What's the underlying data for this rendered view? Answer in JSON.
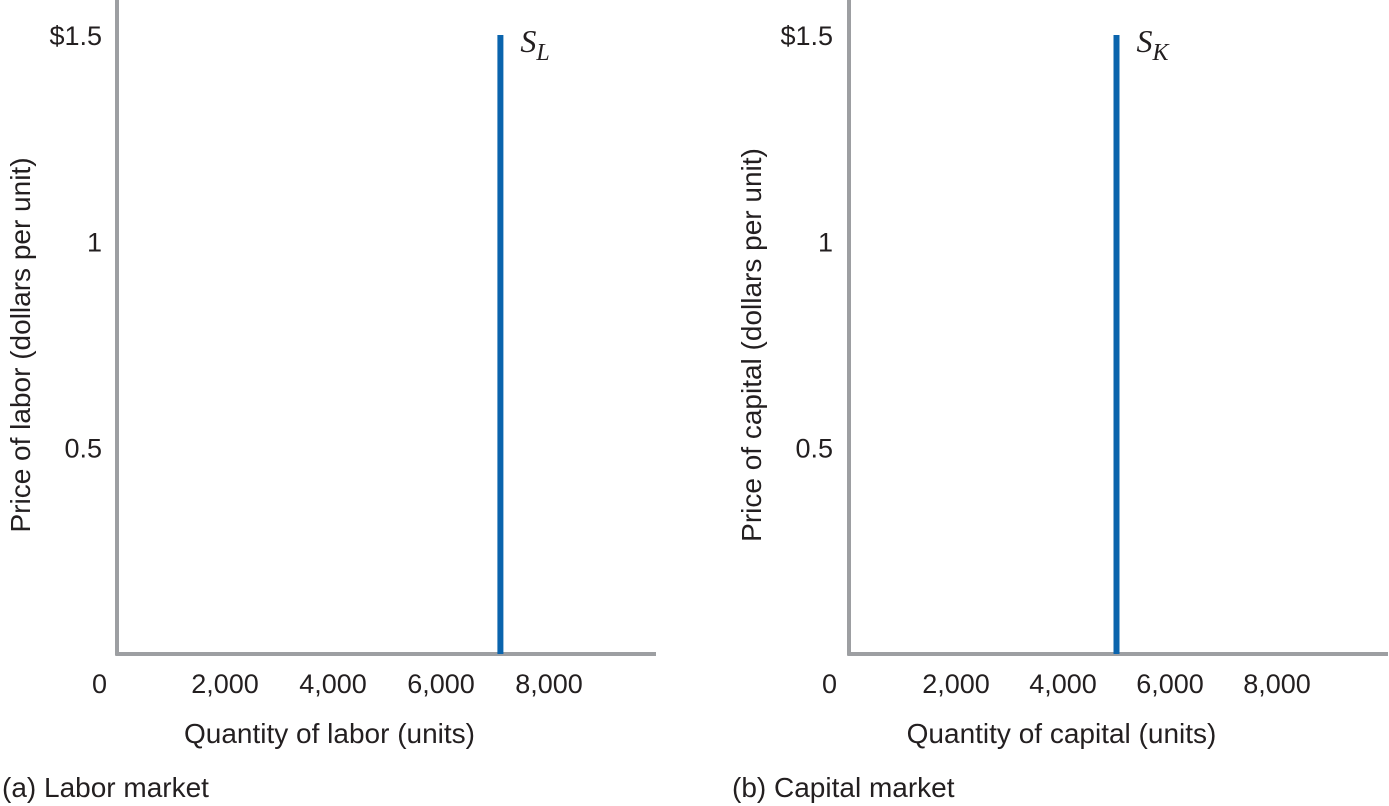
{
  "chart_data": [
    {
      "type": "line",
      "panel": "(a) Labor market",
      "xlabel": "Quantity of labor (units)",
      "ylabel": "Price of labor (dollars per unit)",
      "xlim": [
        0,
        10000
      ],
      "ylim": [
        0,
        1.5
      ],
      "x_ticks": [
        {
          "value": 0,
          "label": "0"
        },
        {
          "value": 2000,
          "label": "2,000"
        },
        {
          "value": 4000,
          "label": "4,000"
        },
        {
          "value": 6000,
          "label": "6,000"
        },
        {
          "value": 8000,
          "label": "8,000"
        }
      ],
      "y_ticks": [
        {
          "value": 0.5,
          "label": "0.5"
        },
        {
          "value": 1,
          "label": "1"
        },
        {
          "value": 1.5,
          "label": "$1.5"
        }
      ],
      "series": [
        {
          "name": "S",
          "subscript": "L",
          "color": "#0a64ad",
          "x": [
            7100,
            7100
          ],
          "y": [
            0,
            1.5
          ]
        }
      ]
    },
    {
      "type": "line",
      "panel": "(b) Capital market",
      "xlabel": "Quantity of capital (units)",
      "ylabel": "Price of capital (dollars per unit)",
      "xlim": [
        0,
        10000
      ],
      "ylim": [
        0,
        1.5
      ],
      "x_ticks": [
        {
          "value": 0,
          "label": "0"
        },
        {
          "value": 2000,
          "label": "2,000"
        },
        {
          "value": 4000,
          "label": "4,000"
        },
        {
          "value": 6000,
          "label": "6,000"
        },
        {
          "value": 8000,
          "label": "8,000"
        }
      ],
      "y_ticks": [
        {
          "value": 0.5,
          "label": "0.5"
        },
        {
          "value": 1,
          "label": "1"
        },
        {
          "value": 1.5,
          "label": "$1.5"
        }
      ],
      "series": [
        {
          "name": "S",
          "subscript": "K",
          "color": "#0a64ad",
          "x": [
            5000,
            5000
          ],
          "y": [
            0,
            1.5
          ]
        }
      ]
    }
  ],
  "style": {
    "axis_color": "#9d9fa2",
    "text_color": "#231f20"
  }
}
